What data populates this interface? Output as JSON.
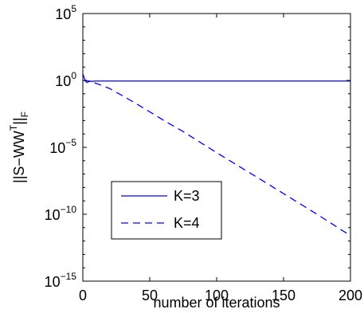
{
  "chart_data": {
    "type": "line",
    "xlabel": "number of iterations",
    "ylabel": {
      "base": "||S−WW",
      "sup": "T",
      "close": "||",
      "sub": "F"
    },
    "xlim": [
      0,
      200
    ],
    "ylim": [
      1e-15,
      100000.0
    ],
    "yscale": "log",
    "x_ticks": [
      0,
      50,
      100,
      150,
      200
    ],
    "y_ticks": [
      {
        "value": 1e-15,
        "base": "10",
        "exp": "−15"
      },
      {
        "value": 1e-10,
        "base": "10",
        "exp": "−10"
      },
      {
        "value": 1e-05,
        "base": "10",
        "exp": "−5"
      },
      {
        "value": 1,
        "base": "10",
        "exp": "0"
      },
      {
        "value": 100000.0,
        "base": "10",
        "exp": "5"
      }
    ],
    "grid": false,
    "legend_position": "lower-left",
    "series": [
      {
        "name": "K=3",
        "style": "solid",
        "color": "#0000ff",
        "x": [
          0,
          1,
          2,
          3,
          5,
          10,
          50,
          100,
          150,
          200
        ],
        "y": [
          3,
          1.6,
          0.9,
          0.7,
          0.85,
          0.9,
          0.9,
          0.9,
          0.9,
          0.9
        ]
      },
      {
        "name": "K=4",
        "style": "dashed",
        "color": "#0000ff",
        "x": [
          0,
          5,
          10,
          15,
          20,
          25,
          30,
          40,
          50,
          60,
          75,
          100,
          125,
          150,
          175,
          200
        ],
        "y": [
          1.0,
          0.9,
          0.6,
          0.4,
          0.25,
          0.13,
          0.07,
          0.018,
          0.0045,
          0.0011,
          0.00015,
          4e-06,
          1.2e-07,
          3.5e-09,
          1e-10,
          2.5e-12
        ]
      }
    ]
  }
}
